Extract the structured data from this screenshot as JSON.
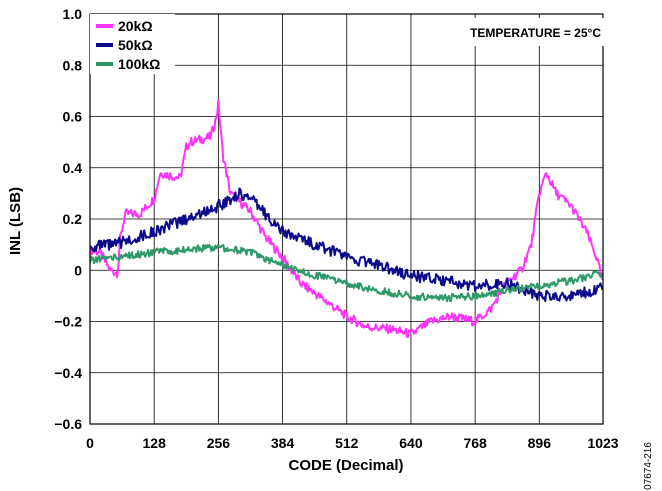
{
  "chart_data": {
    "type": "line",
    "title": "",
    "xlabel": "CODE (Decimal)",
    "ylabel": "INL (LSB)",
    "xlim": [
      0,
      1023
    ],
    "ylim": [
      -0.6,
      1.0
    ],
    "x_ticks": [
      "0",
      "128",
      "256",
      "384",
      "512",
      "640",
      "768",
      "896",
      "1023"
    ],
    "y_ticks": [
      "1.0",
      "0.8",
      "0.6",
      "0.4",
      "0.2",
      "0",
      "−0.2",
      "−0.4",
      "−0.6"
    ],
    "grid": true,
    "legend_position": "top-left",
    "annotation": "TEMPERATURE = 25°C",
    "figure_id": "07674-216",
    "series": [
      {
        "name": "20kΩ",
        "color": "#ff33ff",
        "x": [
          0,
          20,
          40,
          55,
          60,
          70,
          100,
          128,
          140,
          180,
          192,
          200,
          240,
          250,
          256,
          265,
          280,
          320,
          350,
          384,
          420,
          470,
          512,
          550,
          600,
          640,
          680,
          720,
          768,
          800,
          830,
          860,
          880,
          896,
          910,
          930,
          960,
          990,
          1010,
          1023
        ],
        "y": [
          0.08,
          0.07,
          0.0,
          -0.01,
          0.12,
          0.22,
          0.22,
          0.28,
          0.38,
          0.36,
          0.48,
          0.5,
          0.52,
          0.58,
          0.65,
          0.45,
          0.3,
          0.23,
          0.13,
          0.05,
          -0.05,
          -0.12,
          -0.18,
          -0.22,
          -0.23,
          -0.25,
          -0.2,
          -0.18,
          -0.2,
          -0.15,
          -0.05,
          0.0,
          0.1,
          0.3,
          0.38,
          0.3,
          0.25,
          0.15,
          0.05,
          -0.05
        ]
      },
      {
        "name": "50kΩ",
        "color": "#0a0a8a",
        "x": [
          0,
          50,
          128,
          192,
          256,
          300,
          320,
          350,
          384,
          450,
          512,
          576,
          640,
          700,
          768,
          830,
          900,
          960,
          1023
        ],
        "y": [
          0.09,
          0.1,
          0.15,
          0.2,
          0.25,
          0.3,
          0.28,
          0.22,
          0.15,
          0.1,
          0.05,
          0.02,
          -0.02,
          -0.04,
          -0.06,
          -0.05,
          -0.1,
          -0.1,
          -0.07
        ]
      },
      {
        "name": "100kΩ",
        "color": "#2e9a6a",
        "x": [
          0,
          50,
          128,
          192,
          256,
          320,
          384,
          450,
          512,
          576,
          640,
          700,
          768,
          830,
          900,
          960,
          1023
        ],
        "y": [
          0.04,
          0.05,
          0.07,
          0.08,
          0.09,
          0.07,
          0.02,
          -0.02,
          -0.05,
          -0.08,
          -0.1,
          -0.11,
          -0.1,
          -0.08,
          -0.06,
          -0.04,
          -0.01
        ]
      }
    ]
  }
}
